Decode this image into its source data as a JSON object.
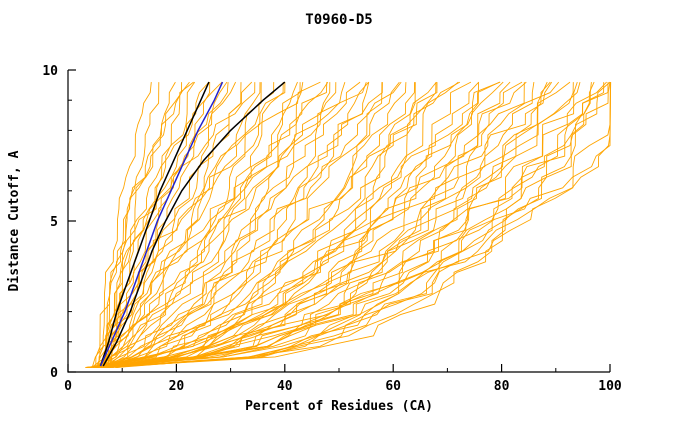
{
  "window": {
    "background": "#FFFFFF"
  },
  "chart_data": {
    "type": "line",
    "title": "T0960-D5",
    "xlabel": "Percent of Residues (CA)",
    "ylabel": "Distance Cutoff, A",
    "xlim": [
      0,
      100
    ],
    "ylim": [
      0,
      10
    ],
    "x_major_ticks": [
      0,
      20,
      40,
      60,
      80,
      100
    ],
    "x_minor_ticks": [
      10,
      30,
      50,
      70,
      90
    ],
    "y_major_ticks": [
      0,
      5,
      10
    ],
    "y_minor_ticks": [
      1,
      2,
      3,
      4,
      6,
      7,
      8,
      9
    ],
    "grid": false,
    "legend": "none",
    "axis_color": "#000000",
    "series_colors": {
      "models": "#FFA500",
      "highlight_black": "#000000",
      "highlight_blue": "#2222CC"
    },
    "y_samples": {
      "start": 0.15,
      "end": 9.6,
      "step": 0.35
    },
    "highlighted_series": [
      {
        "name": "black-model-1",
        "color": "#000000",
        "points": [
          [
            6,
            0.2
          ],
          [
            7.5,
            1
          ],
          [
            9,
            2
          ],
          [
            11,
            3
          ],
          [
            13,
            4
          ],
          [
            15,
            5
          ],
          [
            17,
            6
          ],
          [
            19.5,
            7
          ],
          [
            22,
            8
          ],
          [
            24.5,
            9
          ],
          [
            26,
            9.6
          ]
        ]
      },
      {
        "name": "black-model-2",
        "color": "#000000",
        "points": [
          [
            6.5,
            0.2
          ],
          [
            9,
            1
          ],
          [
            11.5,
            2
          ],
          [
            13.5,
            3
          ],
          [
            15.5,
            4
          ],
          [
            18,
            5
          ],
          [
            21,
            6
          ],
          [
            25,
            7
          ],
          [
            30,
            8
          ],
          [
            36,
            9
          ],
          [
            40,
            9.6
          ]
        ]
      },
      {
        "name": "blue-model",
        "color": "#2222CC",
        "points": [
          [
            6,
            0.2
          ],
          [
            8,
            1
          ],
          [
            10.5,
            2
          ],
          [
            12.5,
            3
          ],
          [
            14.5,
            4
          ],
          [
            16.5,
            5
          ],
          [
            19,
            6
          ],
          [
            21.5,
            7
          ],
          [
            24,
            8
          ],
          [
            27,
            9
          ],
          [
            28.5,
            9.6
          ]
        ]
      }
    ],
    "model_series_format": [
      "x_at_bottom_cutoff",
      "x_at_top_cutoff",
      "shape_exponent"
    ],
    "model_series": [
      [
        5.5,
        15,
        1.6
      ],
      [
        6,
        17,
        1.4
      ],
      [
        6,
        19,
        1.2
      ],
      [
        5,
        21,
        1.5
      ],
      [
        6.5,
        22,
        1.0
      ],
      [
        7,
        24,
        1.3
      ],
      [
        6,
        25,
        0.9
      ],
      [
        5.5,
        27,
        1.1
      ],
      [
        6,
        29,
        0.8
      ],
      [
        7,
        30,
        1.2
      ],
      [
        6,
        32,
        0.7
      ],
      [
        5,
        33,
        1.0
      ],
      [
        6.5,
        35,
        0.85
      ],
      [
        7,
        36,
        0.6
      ],
      [
        6,
        38,
        0.95
      ],
      [
        5.5,
        40,
        0.7
      ],
      [
        6,
        42,
        0.55
      ],
      [
        7,
        44,
        0.8
      ],
      [
        6,
        45,
        0.5
      ],
      [
        5,
        47,
        0.75
      ],
      [
        6.5,
        49,
        0.6
      ],
      [
        7,
        50,
        0.45
      ],
      [
        6,
        52,
        0.7
      ],
      [
        5.5,
        54,
        0.5
      ],
      [
        6,
        56,
        0.65
      ],
      [
        7,
        58,
        0.42
      ],
      [
        6,
        60,
        0.6
      ],
      [
        5,
        62,
        0.48
      ],
      [
        6.5,
        64,
        0.55
      ],
      [
        7,
        65,
        0.4
      ],
      [
        6,
        67,
        0.52
      ],
      [
        5.5,
        69,
        0.45
      ],
      [
        6,
        71,
        0.5
      ],
      [
        7,
        72,
        0.38
      ],
      [
        6,
        74,
        0.48
      ],
      [
        5,
        76,
        0.42
      ],
      [
        6.5,
        78,
        0.45
      ],
      [
        7,
        80,
        0.36
      ],
      [
        6,
        82,
        0.44
      ],
      [
        5.5,
        84,
        0.4
      ],
      [
        6,
        86,
        0.42
      ],
      [
        7,
        88,
        0.35
      ],
      [
        6,
        90,
        0.4
      ],
      [
        5,
        92,
        0.38
      ],
      [
        6.5,
        94,
        0.36
      ],
      [
        7,
        96,
        0.34
      ],
      [
        6,
        98,
        0.35
      ],
      [
        5.5,
        100,
        0.33
      ],
      [
        6,
        100,
        0.4
      ],
      [
        7,
        100,
        0.5
      ],
      [
        6,
        95,
        0.55
      ],
      [
        5,
        90,
        0.6
      ],
      [
        6,
        85,
        0.65
      ],
      [
        7,
        99,
        0.3
      ],
      [
        6,
        55,
        1.3
      ],
      [
        5.5,
        45,
        1.5
      ],
      [
        6,
        35,
        1.8
      ],
      [
        7,
        28,
        2.0
      ],
      [
        6,
        23,
        1.9
      ],
      [
        5,
        48,
        1.1
      ],
      [
        6.5,
        58,
        0.9
      ],
      [
        7,
        68,
        0.75
      ],
      [
        6,
        78,
        0.6
      ],
      [
        5.5,
        88,
        0.5
      ],
      [
        6,
        97,
        0.45
      ],
      [
        6,
        30,
        1.6
      ],
      [
        6,
        40,
        1.2
      ],
      [
        6,
        50,
        0.95
      ],
      [
        6,
        60,
        0.78
      ],
      [
        6,
        70,
        0.62
      ],
      [
        6,
        80,
        0.5
      ],
      [
        6,
        90,
        0.45
      ],
      [
        6,
        112,
        0.5
      ],
      [
        5,
        108,
        0.4
      ],
      [
        6.5,
        115,
        0.6
      ]
    ]
  }
}
